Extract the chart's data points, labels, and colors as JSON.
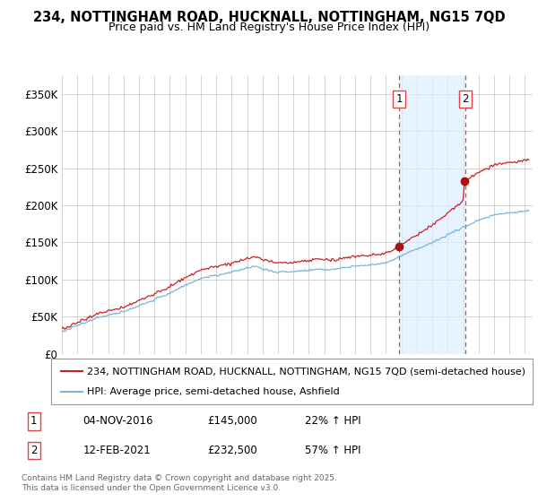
{
  "title": "234, NOTTINGHAM ROAD, HUCKNALL, NOTTINGHAM, NG15 7QD",
  "subtitle": "Price paid vs. HM Land Registry's House Price Index (HPI)",
  "yticks": [
    0,
    50000,
    100000,
    150000,
    200000,
    250000,
    300000,
    350000
  ],
  "ytick_labels": [
    "£0",
    "£50K",
    "£100K",
    "£150K",
    "£200K",
    "£250K",
    "£300K",
    "£350K"
  ],
  "ylim": [
    0,
    375000
  ],
  "xlim_start": 1995.0,
  "xlim_end": 2025.5,
  "hpi_color": "#7ab4d8",
  "price_color": "#cc2222",
  "dashed_line_color": "#dd4444",
  "marker_color": "#aa1111",
  "shade_color": "#ddeeff",
  "background_color": "#ffffff",
  "grid_color": "#cccccc",
  "sale1_year": 2016.84,
  "sale1_price": 145000,
  "sale2_year": 2021.12,
  "sale2_price": 232500,
  "legend_line1": "234, NOTTINGHAM ROAD, HUCKNALL, NOTTINGHAM, NG15 7QD (semi-detached house)",
  "legend_line2": "HPI: Average price, semi-detached house, Ashfield",
  "table_row1": [
    "1",
    "04-NOV-2016",
    "£145,000",
    "22% ↑ HPI"
  ],
  "table_row2": [
    "2",
    "12-FEB-2021",
    "£232,500",
    "57% ↑ HPI"
  ],
  "footnote": "Contains HM Land Registry data © Crown copyright and database right 2025.\nThis data is licensed under the Open Government Licence v3.0.",
  "title_fontsize": 10.5,
  "subtitle_fontsize": 9,
  "axis_fontsize": 8.5,
  "legend_fontsize": 8,
  "table_fontsize": 8.5
}
